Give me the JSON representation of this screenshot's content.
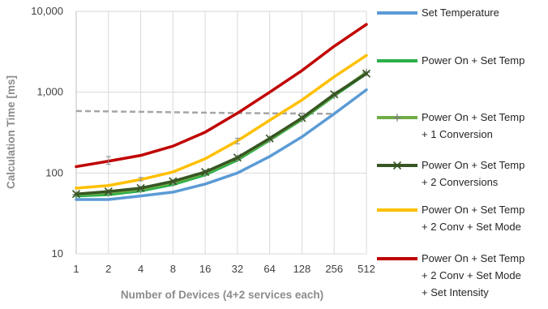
{
  "chart_data": {
    "type": "line",
    "title": "",
    "xlabel": "Number of Devices (4+2 services each)",
    "ylabel": "Calculation Time [ms]",
    "y_scale": "log",
    "ylim": [
      10,
      10000
    ],
    "y_ticks": [
      "10",
      "100",
      "1,000",
      "10,000"
    ],
    "categories": [
      "1",
      "2",
      "4",
      "8",
      "16",
      "32",
      "64",
      "128",
      "256",
      "512"
    ],
    "grid": true,
    "legend_position": "right",
    "series": [
      {
        "name": "Set Temperature",
        "color": "#5b9bd5",
        "marker": "none",
        "values": [
          47,
          47,
          52,
          58,
          73,
          100,
          160,
          280,
          540,
          1070
        ]
      },
      {
        "name": "Power On + Set Temp",
        "color": "#2ab04a",
        "marker": "none",
        "values": [
          52,
          54,
          60,
          72,
          95,
          145,
          255,
          460,
          900,
          1700
        ]
      },
      {
        "name_lines": [
          "Power On + Set Temp",
          "+ 1 Conversion"
        ],
        "color": "#70ad47",
        "marker": "plus",
        "values": [
          54,
          57,
          63,
          76,
          100,
          152,
          262,
          470,
          920,
          1760
        ]
      },
      {
        "name_lines": [
          "Power On + Set Temp",
          "+ 2 Conversions"
        ],
        "color": "#375623",
        "marker": "x",
        "values": [
          55,
          59,
          65,
          79,
          103,
          155,
          268,
          480,
          940,
          1700
        ]
      },
      {
        "name_lines": [
          "Power On + Set Temp",
          "+ 2 Conv + Set Mode"
        ],
        "color": "#ffc000",
        "marker": "none",
        "values": [
          65,
          70,
          83,
          103,
          150,
          250,
          450,
          800,
          1550,
          2850
        ]
      },
      {
        "name_lines": [
          "Power On + Set Temp",
          "+ 2 Conv + Set Mode",
          "+ Set Intensity"
        ],
        "color": "#c00000",
        "marker": "none",
        "values": [
          120,
          140,
          165,
          215,
          320,
          550,
          1000,
          1850,
          3700,
          6900
        ]
      }
    ],
    "reference_line": {
      "style": "dashed",
      "color": "#a6a6a6",
      "x_range": [
        "1",
        "256"
      ],
      "values": [
        585,
        578,
        572,
        565,
        558,
        552,
        548,
        545,
        540
      ]
    },
    "error_bars": [
      {
        "series": 2,
        "category": "2",
        "low": 128,
        "high": 160
      },
      {
        "series": 2,
        "category": "32",
        "low": 230,
        "high": 270
      },
      {
        "series": 4,
        "category": "4",
        "low": 80,
        "high": 88
      }
    ]
  }
}
